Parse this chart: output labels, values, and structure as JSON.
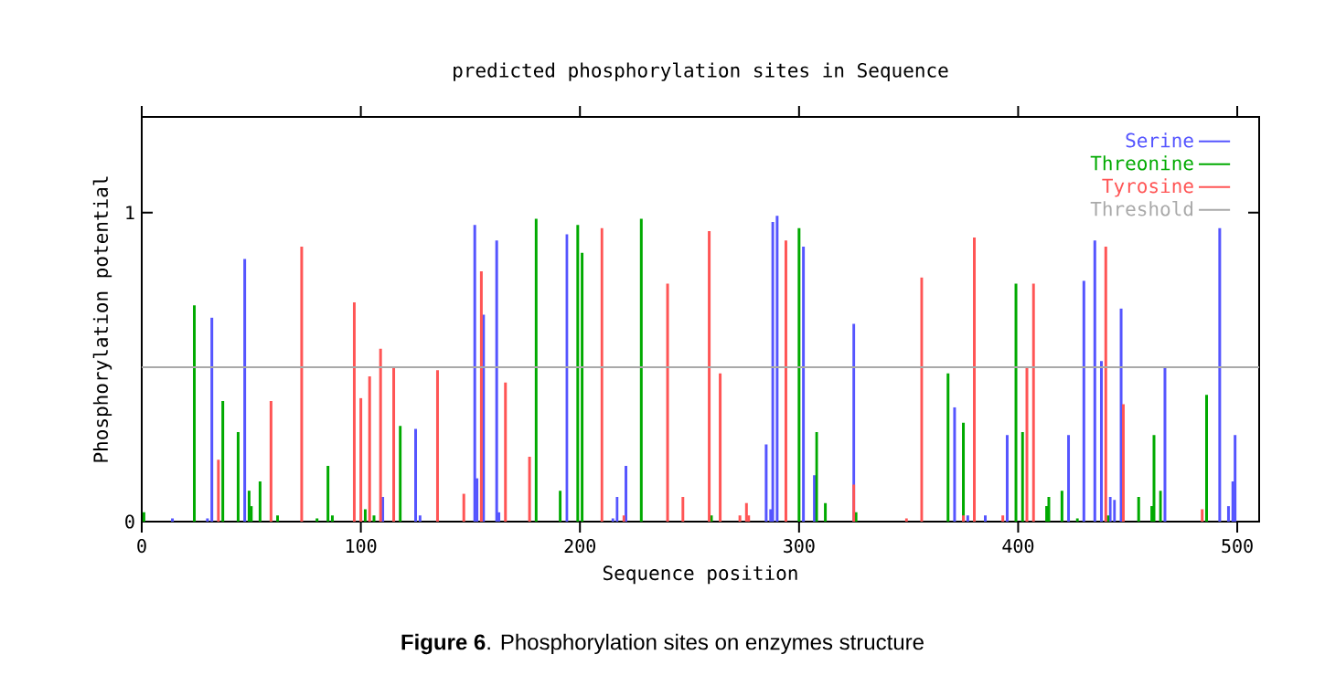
{
  "chart_data": {
    "type": "bar",
    "title": "predicted phosphorylation sites in Sequence",
    "xlabel": "Sequence position",
    "ylabel": "Phosphorylation potential",
    "annotations": [
      "**Figure 6**. Phosphorylation sites on enzymes structure"
    ],
    "xlim": [
      0,
      510
    ],
    "ylim": [
      0,
      1.31
    ],
    "xticks": [
      0,
      100,
      200,
      300,
      400,
      500
    ],
    "yticks": [
      0,
      1
    ],
    "legend": "top right",
    "ref_lines": [
      {
        "axis": "y",
        "value": 0.5,
        "label": "Threshold",
        "color": "#a9a9a9"
      }
    ],
    "series": [
      {
        "name": "Serine",
        "color": "#5555ff",
        "x": [
          14,
          30,
          32,
          47,
          110,
          125,
          127,
          152,
          153,
          156,
          162,
          163,
          194,
          215,
          217,
          221,
          285,
          287,
          288,
          290,
          302,
          307,
          325,
          371,
          377,
          385,
          395,
          423,
          430,
          435,
          438,
          442,
          444,
          447,
          467,
          492,
          496,
          498,
          499
        ],
        "values": [
          0.01,
          0.01,
          0.66,
          0.85,
          0.08,
          0.3,
          0.02,
          0.96,
          0.14,
          0.67,
          0.91,
          0.03,
          0.93,
          0.01,
          0.08,
          0.18,
          0.25,
          0.04,
          0.97,
          0.99,
          0.89,
          0.15,
          0.64,
          0.37,
          0.02,
          0.02,
          0.28,
          0.28,
          0.78,
          0.91,
          0.52,
          0.08,
          0.07,
          0.69,
          0.5,
          0.95,
          0.05,
          0.13,
          0.28
        ]
      },
      {
        "name": "Threonine",
        "color": "#00aa00",
        "x": [
          1,
          24,
          37,
          44,
          49,
          50,
          54,
          62,
          80,
          85,
          87,
          102,
          106,
          118,
          180,
          191,
          199,
          201,
          228,
          260,
          300,
          308,
          312,
          326,
          368,
          375,
          399,
          402,
          413,
          414,
          420,
          427,
          441,
          455,
          461,
          462,
          465,
          486
        ],
        "values": [
          0.03,
          0.7,
          0.39,
          0.29,
          0.1,
          0.05,
          0.13,
          0.02,
          0.01,
          0.18,
          0.02,
          0.04,
          0.02,
          0.31,
          0.98,
          0.1,
          0.96,
          0.87,
          0.98,
          0.02,
          0.95,
          0.29,
          0.06,
          0.03,
          0.48,
          0.32,
          0.77,
          0.29,
          0.05,
          0.08,
          0.1,
          0.01,
          0.02,
          0.08,
          0.05,
          0.28,
          0.1,
          0.41
        ]
      },
      {
        "name": "Tyrosine",
        "color": "#ff5555",
        "x": [
          35,
          59,
          73,
          97,
          100,
          104,
          109,
          115,
          135,
          147,
          155,
          166,
          177,
          210,
          220,
          240,
          247,
          259,
          264,
          273,
          276,
          277,
          294,
          325,
          349,
          356,
          375,
          380,
          393,
          404,
          407,
          440,
          448,
          484
        ],
        "values": [
          0.2,
          0.39,
          0.89,
          0.71,
          0.4,
          0.47,
          0.56,
          0.5,
          0.49,
          0.09,
          0.81,
          0.45,
          0.21,
          0.95,
          0.02,
          0.77,
          0.08,
          0.94,
          0.48,
          0.02,
          0.06,
          0.02,
          0.91,
          0.12,
          0.01,
          0.79,
          0.02,
          0.92,
          0.02,
          0.5,
          0.77,
          0.89,
          0.38,
          0.04
        ]
      }
    ]
  }
}
